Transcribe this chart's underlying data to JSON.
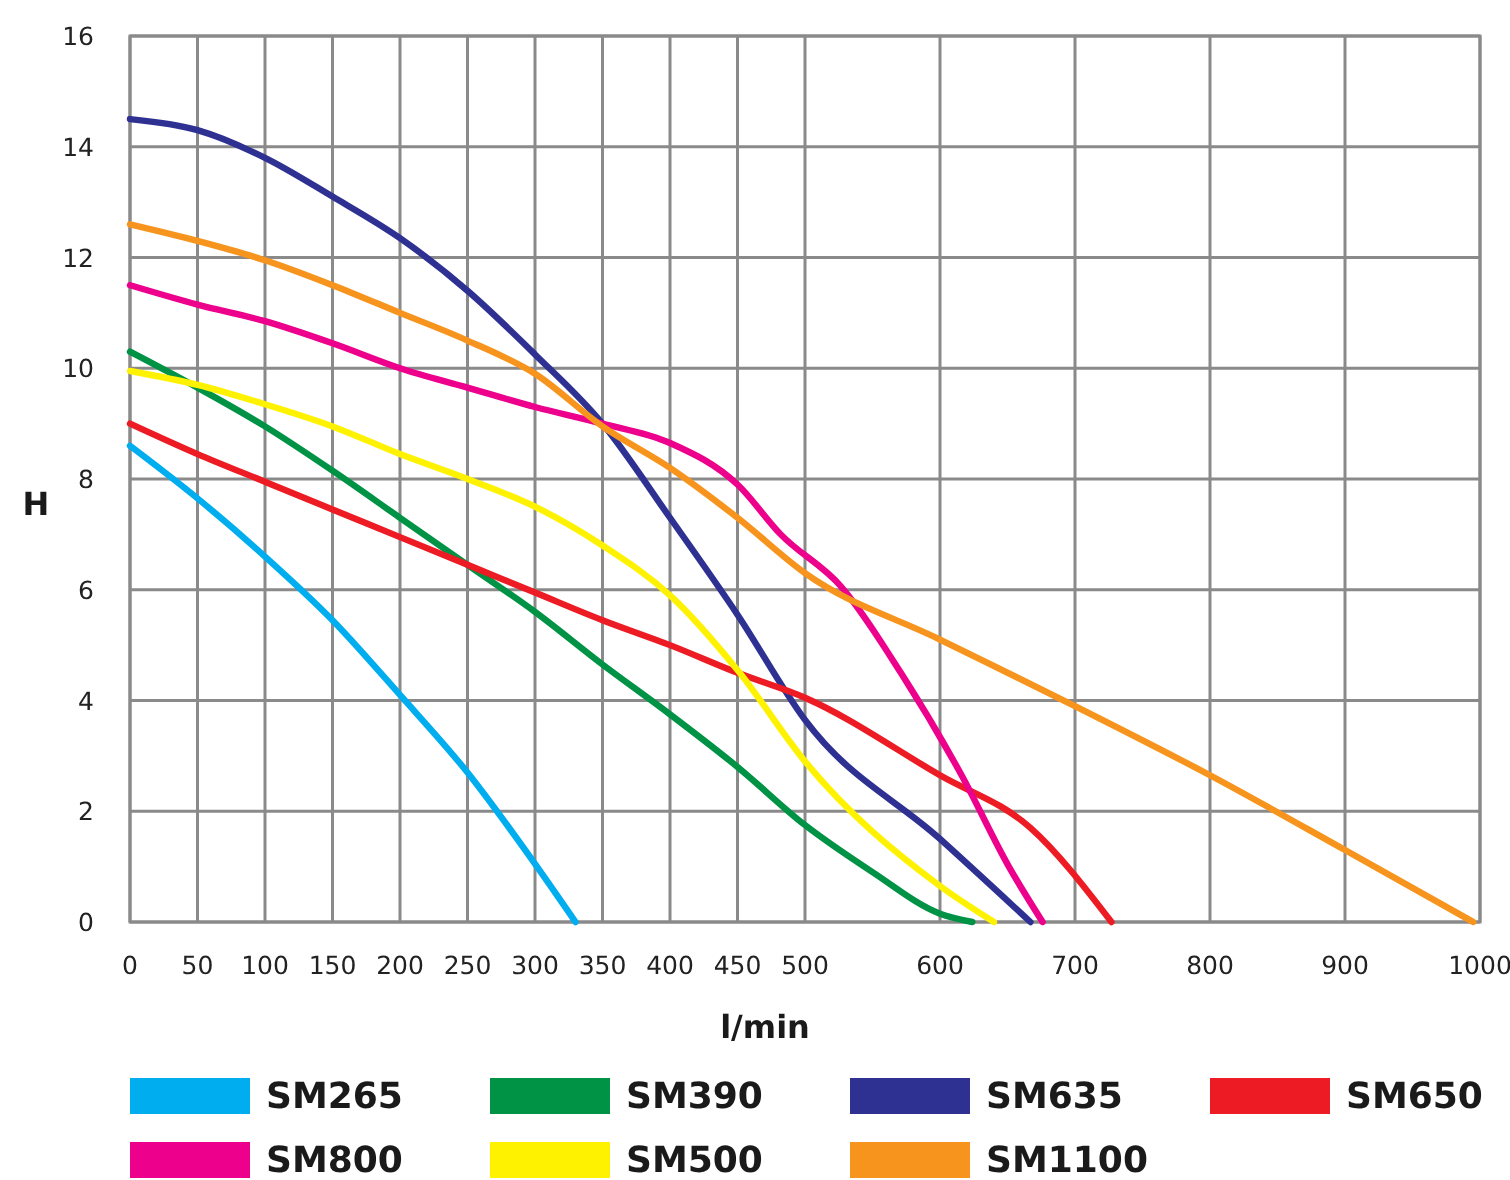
{
  "chart_data": {
    "type": "line",
    "xlabel": "l/min",
    "ylabel": "H",
    "xlim": [
      0,
      1000
    ],
    "ylim": [
      0,
      16
    ],
    "xticks": [
      0,
      50,
      100,
      150,
      200,
      250,
      300,
      350,
      400,
      450,
      500,
      600,
      700,
      800,
      900,
      1000
    ],
    "yticks": [
      0,
      2,
      4,
      6,
      8,
      10,
      12,
      14,
      16
    ],
    "grid": true,
    "legend": "bottom",
    "marker": "none",
    "line_style": "solid",
    "series": [
      {
        "name": "SM265",
        "color": "#00aeef",
        "x": [
          0,
          50,
          100,
          150,
          200,
          250,
          300,
          330
        ],
        "values": [
          8.6,
          7.65,
          6.6,
          5.45,
          4.1,
          2.7,
          1.05,
          0
        ]
      },
      {
        "name": "SM390",
        "color": "#009245",
        "x": [
          0,
          50,
          100,
          150,
          200,
          250,
          300,
          350,
          400,
          450,
          500,
          550,
          600,
          624
        ],
        "values": [
          10.3,
          9.65,
          8.95,
          8.15,
          7.3,
          6.45,
          5.6,
          4.65,
          3.75,
          2.8,
          1.75,
          0.9,
          0.15,
          0
        ]
      },
      {
        "name": "SM635",
        "color": "#2e3192",
        "x": [
          0,
          50,
          100,
          150,
          200,
          250,
          300,
          350,
          400,
          450,
          500,
          600,
          667
        ],
        "values": [
          14.5,
          14.3,
          13.8,
          13.1,
          12.35,
          11.4,
          10.25,
          9.0,
          7.3,
          5.55,
          3.65,
          1.5,
          0
        ]
      },
      {
        "name": "SM650",
        "color": "#ed1c24",
        "x": [
          0,
          50,
          100,
          150,
          200,
          250,
          300,
          350,
          400,
          450,
          500,
          600,
          667,
          727
        ],
        "values": [
          9.0,
          8.45,
          7.95,
          7.45,
          6.95,
          6.45,
          5.95,
          5.45,
          5.0,
          4.5,
          4.05,
          2.65,
          1.7,
          0
        ]
      },
      {
        "name": "SM800",
        "color": "#ec008c",
        "x": [
          0,
          50,
          100,
          150,
          200,
          250,
          300,
          350,
          400,
          450,
          482,
          527,
          571,
          616,
          651,
          676
        ],
        "values": [
          11.5,
          11.15,
          10.85,
          10.45,
          10.0,
          9.65,
          9.3,
          9.0,
          8.65,
          7.9,
          7.0,
          6.05,
          4.5,
          2.65,
          1.0,
          0
        ]
      },
      {
        "name": "SM500",
        "color": "#fff200",
        "x": [
          0,
          50,
          100,
          150,
          200,
          250,
          300,
          350,
          400,
          450,
          500,
          600,
          640
        ],
        "values": [
          9.95,
          9.7,
          9.35,
          8.95,
          8.45,
          8.0,
          7.5,
          6.8,
          5.9,
          4.55,
          2.9,
          0.65,
          0
        ]
      },
      {
        "name": "SM1100",
        "color": "#f7941d",
        "x": [
          0,
          50,
          100,
          150,
          200,
          250,
          300,
          350,
          400,
          450,
          500,
          600,
          700,
          800,
          900,
          995
        ],
        "values": [
          12.6,
          12.3,
          11.95,
          11.5,
          11.0,
          10.5,
          9.9,
          8.95,
          8.2,
          7.3,
          6.3,
          5.1,
          3.9,
          2.65,
          1.3,
          0
        ]
      }
    ]
  }
}
